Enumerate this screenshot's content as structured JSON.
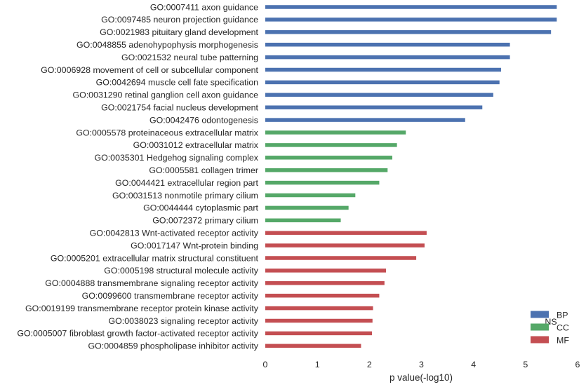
{
  "chart_data": {
    "type": "bar",
    "orientation": "horizontal",
    "title": "",
    "xlabel": "p value(-log10)",
    "ylabel": "",
    "xlim": [
      0,
      6
    ],
    "xticks": [
      0,
      1,
      2,
      3,
      4,
      5,
      6
    ],
    "grid": false,
    "legend": {
      "title": "NS",
      "placement": "bottom-right",
      "entries": [
        {
          "name": "BP",
          "color": "#4c72b0"
        },
        {
          "name": "CC",
          "color": "#55a868"
        },
        {
          "name": "MF",
          "color": "#c44e52"
        }
      ]
    },
    "bars": [
      {
        "label": "GO:0007411 axon guidance",
        "value": 5.6,
        "group": "BP"
      },
      {
        "label": "GO:0097485 neuron projection guidance",
        "value": 5.6,
        "group": "BP"
      },
      {
        "label": "GO:0021983 pituitary gland development",
        "value": 5.49,
        "group": "BP"
      },
      {
        "label": "GO:0048855 adenohypophysis morphogenesis",
        "value": 4.7,
        "group": "BP"
      },
      {
        "label": "GO:0021532 neural tube patterning",
        "value": 4.7,
        "group": "BP"
      },
      {
        "label": "GO:0006928 movement of cell or subcellular component",
        "value": 4.53,
        "group": "BP"
      },
      {
        "label": "GO:0042694 muscle cell fate specification",
        "value": 4.5,
        "group": "BP"
      },
      {
        "label": "GO:0031290 retinal ganglion cell axon guidance",
        "value": 4.38,
        "group": "BP"
      },
      {
        "label": "GO:0021754 facial nucleus development",
        "value": 4.17,
        "group": "BP"
      },
      {
        "label": "GO:0042476 odontogenesis",
        "value": 3.84,
        "group": "BP"
      },
      {
        "label": "GO:0005578 proteinaceous extracellular matrix",
        "value": 2.7,
        "group": "CC"
      },
      {
        "label": "GO:0031012 extracellular matrix",
        "value": 2.53,
        "group": "CC"
      },
      {
        "label": "GO:0035301 Hedgehog signaling complex",
        "value": 2.44,
        "group": "CC"
      },
      {
        "label": "GO:0005581 collagen trimer",
        "value": 2.35,
        "group": "CC"
      },
      {
        "label": "GO:0044421 extracellular region part",
        "value": 2.19,
        "group": "CC"
      },
      {
        "label": "GO:0031513 nonmotile primary cilium",
        "value": 1.73,
        "group": "CC"
      },
      {
        "label": "GO:0044444 cytoplasmic part",
        "value": 1.6,
        "group": "CC"
      },
      {
        "label": "GO:0072372 primary cilium",
        "value": 1.45,
        "group": "CC"
      },
      {
        "label": "GO:0042813 Wnt-activated receptor activity",
        "value": 3.1,
        "group": "MF"
      },
      {
        "label": "GO:0017147 Wnt-protein binding",
        "value": 3.06,
        "group": "MF"
      },
      {
        "label": "GO:0005201 extracellular matrix structural constituent",
        "value": 2.9,
        "group": "MF"
      },
      {
        "label": "GO:0005198 structural molecule activity",
        "value": 2.32,
        "group": "MF"
      },
      {
        "label": "GO:0004888 transmembrane signaling receptor activity",
        "value": 2.29,
        "group": "MF"
      },
      {
        "label": "GO:0099600 transmembrane receptor activity",
        "value": 2.19,
        "group": "MF"
      },
      {
        "label": "GO:0019199 transmembrane receptor protein kinase activity",
        "value": 2.07,
        "group": "MF"
      },
      {
        "label": "GO:0038023 signaling receptor activity",
        "value": 2.06,
        "group": "MF"
      },
      {
        "label": "GO:0005007 fibroblast growth factor-activated receptor activity",
        "value": 2.05,
        "group": "MF"
      },
      {
        "label": "GO:0004859 phospholipase inhibitor activity",
        "value": 1.84,
        "group": "MF"
      }
    ]
  }
}
